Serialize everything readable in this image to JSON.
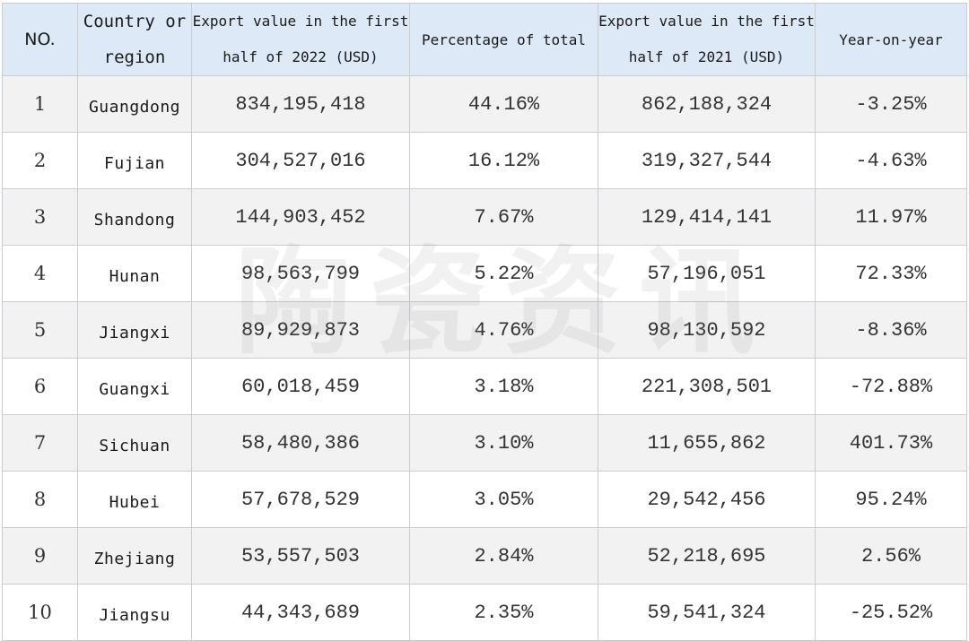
{
  "table": {
    "headers": {
      "no": "NO.",
      "region": "Country or region",
      "export_2022": "Export value in the first half of 2022 (USD)",
      "percentage": "Percentage of total",
      "export_2021": "Export value in the first half of 2021 (USD)",
      "yoy": "Year-on-year"
    },
    "rows": [
      {
        "no": "1",
        "region": "Guangdong",
        "export_2022": "834,195,418",
        "percentage": "44.16%",
        "export_2021": "862,188,324",
        "yoy": "-3.25%"
      },
      {
        "no": "2",
        "region": "Fujian",
        "export_2022": "304,527,016",
        "percentage": "16.12%",
        "export_2021": "319,327,544",
        "yoy": "-4.63%"
      },
      {
        "no": "3",
        "region": "Shandong",
        "export_2022": "144,903,452",
        "percentage": "7.67%",
        "export_2021": "129,414,141",
        "yoy": "11.97%"
      },
      {
        "no": "4",
        "region": "Hunan",
        "export_2022": "98,563,799",
        "percentage": "5.22%",
        "export_2021": "57,196,051",
        "yoy": "72.33%"
      },
      {
        "no": "5",
        "region": "Jiangxi",
        "export_2022": "89,929,873",
        "percentage": "4.76%",
        "export_2021": "98,130,592",
        "yoy": "-8.36%"
      },
      {
        "no": "6",
        "region": "Guangxi",
        "export_2022": "60,018,459",
        "percentage": "3.18%",
        "export_2021": "221,308,501",
        "yoy": "-72.88%"
      },
      {
        "no": "7",
        "region": "Sichuan",
        "export_2022": "58,480,386",
        "percentage": "3.10%",
        "export_2021": "11,655,862",
        "yoy": "401.73%"
      },
      {
        "no": "8",
        "region": "Hubei",
        "export_2022": "57,678,529",
        "percentage": "3.05%",
        "export_2021": "29,542,456",
        "yoy": "95.24%"
      },
      {
        "no": "9",
        "region": "Zhejiang",
        "export_2022": "53,557,503",
        "percentage": "2.84%",
        "export_2021": "52,218,695",
        "yoy": "2.56%"
      },
      {
        "no": "10",
        "region": "Jiangsu",
        "export_2022": "44,343,689",
        "percentage": "2.35%",
        "export_2021": "59,541,324",
        "yoy": "-25.52%"
      }
    ]
  },
  "watermark": "陶瓷资讯",
  "colors": {
    "header_bg": "#dde9f7",
    "row_alt_bg": "#f2f2f2",
    "border": "#c9cdd2"
  }
}
